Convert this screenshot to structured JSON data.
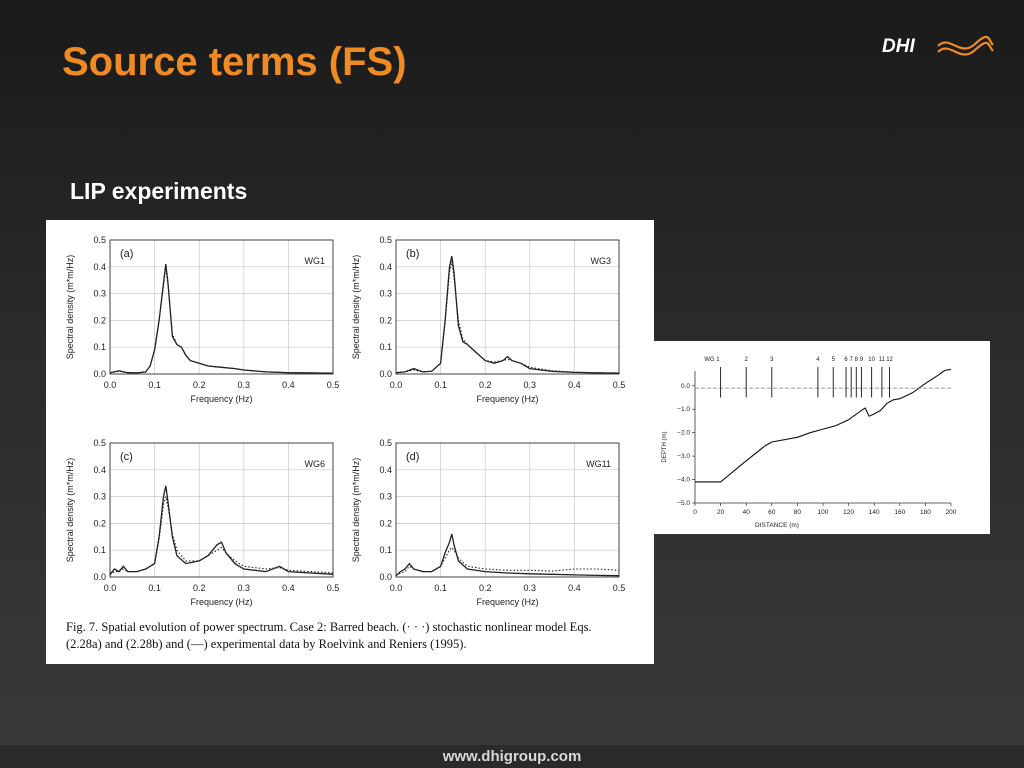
{
  "slide": {
    "title": "Source terms (FS)",
    "subtitle": "LIP experiments",
    "footer_url": "www.dhigroup.com",
    "logo_text": "DHI",
    "colors": {
      "title": "#f08a24",
      "logo_wave": "#f08a24",
      "background": "#2b2b2b"
    }
  },
  "figure": {
    "caption_line1": "Fig. 7. Spatial evolution of power spectrum. Case 2: Barred beach. (· · ·) stochastic nonlinear model Eqs.",
    "caption_line2": "(2.28a) and (2.28b) and (—) experimental data by Roelvink and Reniers (1995)."
  },
  "chart_data": [
    {
      "type": "line",
      "panel_label": "(a)",
      "station": "WG1",
      "xlabel": "Frequency (Hz)",
      "ylabel": "Spectral density (m*m/Hz)",
      "xlim": [
        0,
        0.5
      ],
      "ylim": [
        0,
        0.5
      ],
      "xticks": [
        "0.0",
        "0.1",
        "0.2",
        "0.3",
        "0.4",
        "0.5"
      ],
      "yticks": [
        "0.0",
        "0.1",
        "0.2",
        "0.3",
        "0.4",
        "0.5"
      ],
      "grid": true,
      "x": [
        0,
        0.02,
        0.04,
        0.06,
        0.08,
        0.09,
        0.1,
        0.11,
        0.12,
        0.125,
        0.13,
        0.14,
        0.15,
        0.16,
        0.17,
        0.18,
        0.2,
        0.22,
        0.25,
        0.28,
        0.3,
        0.35,
        0.4,
        0.45,
        0.5
      ],
      "series": [
        {
          "style": "solid",
          "values": [
            0.005,
            0.012,
            0.005,
            0.004,
            0.008,
            0.03,
            0.09,
            0.2,
            0.34,
            0.41,
            0.34,
            0.14,
            0.11,
            0.1,
            0.07,
            0.05,
            0.04,
            0.03,
            0.025,
            0.02,
            0.015,
            0.008,
            0.005,
            0.004,
            0.003
          ]
        },
        {
          "style": "dotted",
          "values": [
            0.004,
            0.01,
            0.005,
            0.004,
            0.008,
            0.03,
            0.09,
            0.2,
            0.33,
            0.4,
            0.33,
            0.15,
            0.11,
            0.1,
            0.07,
            0.05,
            0.04,
            0.03,
            0.025,
            0.02,
            0.015,
            0.008,
            0.005,
            0.004,
            0.003
          ]
        }
      ]
    },
    {
      "type": "line",
      "panel_label": "(b)",
      "station": "WG3",
      "xlabel": "Frequency (Hz)",
      "ylabel": "Spectral density (m*m/Hz)",
      "xlim": [
        0,
        0.5
      ],
      "ylim": [
        0,
        0.5
      ],
      "xticks": [
        "0.0",
        "0.1",
        "0.2",
        "0.3",
        "0.4",
        "0.5"
      ],
      "yticks": [
        "0.0",
        "0.1",
        "0.2",
        "0.3",
        "0.4",
        "0.5"
      ],
      "grid": true,
      "x": [
        0,
        0.02,
        0.04,
        0.06,
        0.08,
        0.1,
        0.11,
        0.12,
        0.125,
        0.13,
        0.14,
        0.15,
        0.16,
        0.18,
        0.2,
        0.22,
        0.24,
        0.25,
        0.26,
        0.28,
        0.3,
        0.35,
        0.4,
        0.45,
        0.5
      ],
      "series": [
        {
          "style": "solid",
          "values": [
            0.005,
            0.008,
            0.02,
            0.008,
            0.01,
            0.04,
            0.2,
            0.4,
            0.44,
            0.38,
            0.18,
            0.12,
            0.11,
            0.08,
            0.05,
            0.04,
            0.05,
            0.065,
            0.05,
            0.04,
            0.02,
            0.01,
            0.006,
            0.004,
            0.003
          ]
        },
        {
          "style": "dotted",
          "values": [
            0.004,
            0.008,
            0.015,
            0.008,
            0.01,
            0.04,
            0.19,
            0.38,
            0.42,
            0.36,
            0.2,
            0.13,
            0.11,
            0.08,
            0.05,
            0.045,
            0.05,
            0.055,
            0.05,
            0.04,
            0.025,
            0.012,
            0.007,
            0.005,
            0.004
          ]
        }
      ]
    },
    {
      "type": "line",
      "panel_label": "(c)",
      "station": "WG6",
      "xlabel": "Frequency (Hz)",
      "ylabel": "Spectral density (m*m/Hz)",
      "xlim": [
        0,
        0.5
      ],
      "ylim": [
        0,
        0.5
      ],
      "xticks": [
        "0.0",
        "0.1",
        "0.2",
        "0.3",
        "0.4",
        "0.5"
      ],
      "yticks": [
        "0.0",
        "0.1",
        "0.2",
        "0.3",
        "0.4",
        "0.5"
      ],
      "grid": true,
      "x": [
        0,
        0.01,
        0.02,
        0.03,
        0.04,
        0.06,
        0.08,
        0.1,
        0.11,
        0.12,
        0.125,
        0.13,
        0.14,
        0.15,
        0.17,
        0.2,
        0.22,
        0.24,
        0.25,
        0.26,
        0.28,
        0.3,
        0.35,
        0.38,
        0.4,
        0.45,
        0.5
      ],
      "series": [
        {
          "style": "solid",
          "values": [
            0.01,
            0.03,
            0.02,
            0.04,
            0.02,
            0.02,
            0.03,
            0.05,
            0.15,
            0.3,
            0.34,
            0.28,
            0.15,
            0.08,
            0.05,
            0.06,
            0.08,
            0.12,
            0.13,
            0.09,
            0.05,
            0.03,
            0.02,
            0.04,
            0.02,
            0.015,
            0.01
          ]
        },
        {
          "style": "dotted",
          "values": [
            0.008,
            0.02,
            0.02,
            0.03,
            0.02,
            0.02,
            0.03,
            0.05,
            0.14,
            0.27,
            0.3,
            0.26,
            0.16,
            0.1,
            0.06,
            0.06,
            0.08,
            0.1,
            0.11,
            0.09,
            0.06,
            0.04,
            0.03,
            0.035,
            0.025,
            0.02,
            0.015
          ]
        }
      ]
    },
    {
      "type": "line",
      "panel_label": "(d)",
      "station": "WG11",
      "xlabel": "Frequency (Hz)",
      "ylabel": "Spectral density (m*m/Hz)",
      "xlim": [
        0,
        0.5
      ],
      "ylim": [
        0,
        0.5
      ],
      "xticks": [
        "0.0",
        "0.1",
        "0.2",
        "0.3",
        "0.4",
        "0.5"
      ],
      "yticks": [
        "0.0",
        "0.1",
        "0.2",
        "0.3",
        "0.4",
        "0.5"
      ],
      "grid": true,
      "x": [
        0,
        0.01,
        0.02,
        0.03,
        0.04,
        0.06,
        0.08,
        0.1,
        0.11,
        0.12,
        0.125,
        0.13,
        0.14,
        0.16,
        0.2,
        0.25,
        0.3,
        0.35,
        0.4,
        0.45,
        0.5
      ],
      "series": [
        {
          "style": "solid",
          "values": [
            0.005,
            0.02,
            0.03,
            0.05,
            0.03,
            0.02,
            0.02,
            0.04,
            0.09,
            0.13,
            0.16,
            0.12,
            0.06,
            0.03,
            0.02,
            0.015,
            0.012,
            0.01,
            0.008,
            0.006,
            0.005
          ]
        },
        {
          "style": "dotted",
          "values": [
            0.005,
            0.015,
            0.02,
            0.04,
            0.03,
            0.02,
            0.02,
            0.04,
            0.07,
            0.1,
            0.11,
            0.1,
            0.07,
            0.04,
            0.03,
            0.025,
            0.025,
            0.022,
            0.03,
            0.03,
            0.025
          ]
        }
      ]
    },
    {
      "type": "line",
      "panel_label": "",
      "xlabel": "DISTANCE (m)",
      "ylabel": "DEPTH (m)",
      "xlim": [
        0,
        200
      ],
      "ylim": [
        -5.0,
        0.8
      ],
      "xticks": [
        "0",
        "20",
        "40",
        "60",
        "80",
        "100",
        "120",
        "140",
        "160",
        "180",
        "200"
      ],
      "yticks": [
        "0.0",
        "−1.0",
        "−2.0",
        "−3.0",
        "−4.0",
        "−5.0"
      ],
      "gauges": {
        "labels": [
          "WG 1",
          "2",
          "3",
          "4",
          "5",
          "6",
          "7",
          "8",
          "9",
          "10",
          "11",
          "12"
        ],
        "x": [
          20,
          40,
          60,
          96,
          108,
          118,
          122,
          126,
          130,
          138,
          146,
          152
        ]
      },
      "x": [
        0,
        20,
        40,
        55,
        60,
        80,
        90,
        100,
        110,
        120,
        130,
        133,
        136,
        138,
        140,
        145,
        150,
        155,
        160,
        170,
        180,
        190,
        195,
        200
      ],
      "series": [
        {
          "name": "bed profile",
          "style": "solid",
          "values": [
            -4.1,
            -4.1,
            -3.2,
            -2.55,
            -2.4,
            -2.2,
            -2.0,
            -1.85,
            -1.7,
            -1.45,
            -1.05,
            -0.95,
            -1.3,
            -1.25,
            -1.2,
            -1.05,
            -0.75,
            -0.6,
            -0.55,
            -0.3,
            0.1,
            0.45,
            0.65,
            0.7
          ]
        },
        {
          "name": "still water",
          "style": "dashed",
          "values": [
            -0.1,
            -0.1,
            -0.1,
            -0.1,
            -0.1,
            -0.1,
            -0.1,
            -0.1,
            -0.1,
            -0.1,
            -0.1,
            -0.1,
            -0.1,
            -0.1,
            -0.1,
            -0.1,
            -0.1,
            -0.1,
            -0.1,
            -0.1,
            -0.1,
            -0.1,
            -0.1,
            -0.1
          ]
        }
      ]
    }
  ]
}
